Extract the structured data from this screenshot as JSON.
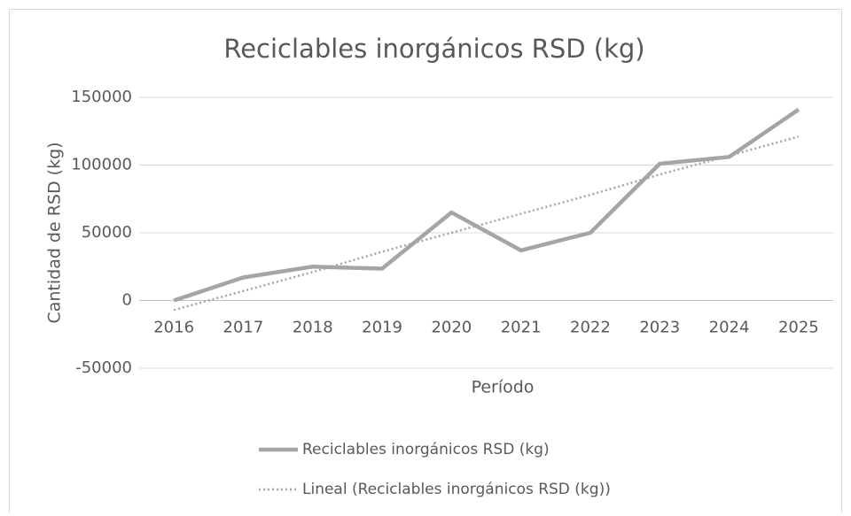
{
  "chart_data": {
    "type": "line",
    "title": "Reciclables inorgánicos RSD (kg)",
    "x_label": "Período",
    "y_label": "Cantidad de RSD (kg)",
    "categories": [
      "2016",
      "2017",
      "2018",
      "2019",
      "2020",
      "2021",
      "2022",
      "2023",
      "2024",
      "2025"
    ],
    "series": [
      {
        "name": "Reciclables inorgánicos RSD (kg)",
        "color": "#a5a5a5",
        "style": "solid",
        "values": [
          0,
          17000,
          25000,
          23500,
          65000,
          37000,
          50000,
          101000,
          106000,
          141000
        ]
      },
      {
        "name": "Lineal (Reciclables inorgánicos RSD (kg))",
        "color": "#a5a5a5",
        "style": "dotted",
        "values": [
          -7000,
          7000,
          21000,
          36000,
          50000,
          64000,
          78000,
          93000,
          107000,
          121000
        ]
      }
    ],
    "ylim": [
      -50000,
      150000
    ],
    "yticks": [
      -50000,
      0,
      50000,
      100000,
      150000
    ],
    "grid": true,
    "legend": "bottom"
  }
}
